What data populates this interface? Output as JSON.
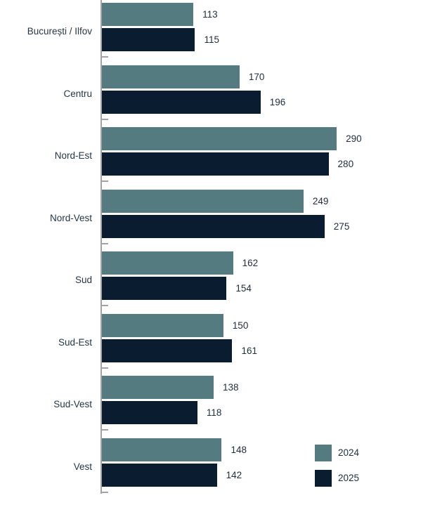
{
  "chart_data": {
    "type": "bar",
    "orientation": "horizontal",
    "title": "",
    "xlabel": "",
    "ylabel": "",
    "categories": [
      "București / Ilfov",
      "Centru",
      "Nord-Est",
      "Nord-Vest",
      "Sud",
      "Sud-Est",
      "Sud-Vest",
      "Vest"
    ],
    "series": [
      {
        "name": "2024",
        "color": "#547b7f",
        "values": [
          113,
          170,
          290,
          249,
          162,
          150,
          138,
          148
        ]
      },
      {
        "name": "2025",
        "color": "#0a1c30",
        "values": [
          115,
          196,
          280,
          275,
          154,
          161,
          118,
          142
        ]
      }
    ],
    "xlim": [
      0,
      300
    ],
    "grid": false,
    "value_labels": true,
    "legend_position": "bottom-right"
  },
  "colors": {
    "axis": "#a3a3a3",
    "category_text": "#253746",
    "value_text": "#1f2d3d",
    "background": "#ffffff"
  }
}
